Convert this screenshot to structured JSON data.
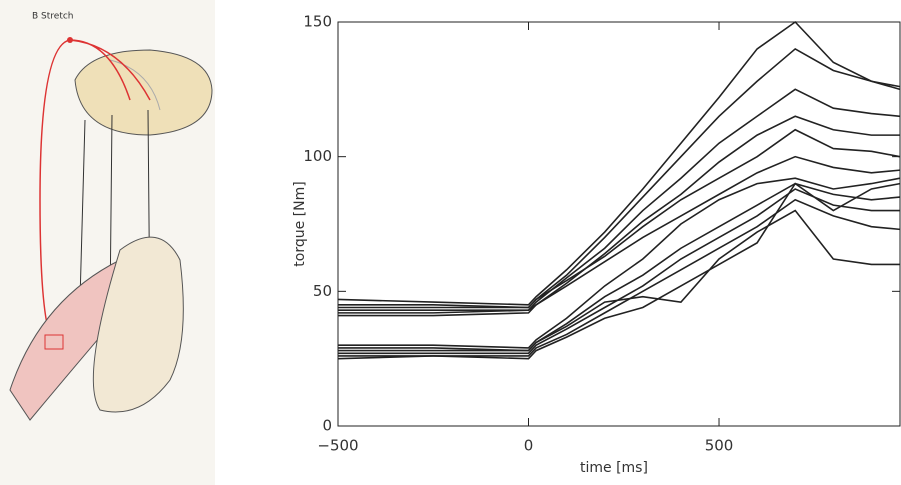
{
  "panel_label": "B Stretch",
  "chart_data": {
    "type": "line",
    "xlabel": "time [ms]",
    "ylabel": "torque [Nm]",
    "x": [
      -500,
      -250,
      0,
      20,
      100,
      200,
      300,
      400,
      500,
      600,
      700,
      800,
      900,
      975
    ],
    "color": "#222222",
    "series": [
      {
        "values": [
          47,
          46,
          45,
          48,
          58,
          72,
          88,
          105,
          122,
          140,
          150,
          135,
          128,
          125
        ]
      },
      {
        "values": [
          45,
          45,
          44,
          47,
          56,
          70,
          85,
          100,
          115,
          128,
          140,
          132,
          128,
          126
        ]
      },
      {
        "values": [
          43,
          43,
          43,
          46,
          55,
          66,
          80,
          92,
          105,
          115,
          125,
          118,
          116,
          115
        ]
      },
      {
        "values": [
          41,
          41,
          42,
          45,
          53,
          64,
          76,
          86,
          98,
          108,
          115,
          110,
          108,
          108
        ]
      },
      {
        "values": [
          44,
          44,
          44,
          47,
          54,
          63,
          74,
          84,
          92,
          100,
          110,
          103,
          102,
          100
        ]
      },
      {
        "values": [
          42,
          42,
          43,
          45,
          52,
          61,
          70,
          78,
          86,
          94,
          100,
          96,
          94,
          95
        ]
      },
      {
        "values": [
          30,
          30,
          29,
          32,
          40,
          52,
          62,
          75,
          84,
          90,
          92,
          88,
          90,
          92
        ]
      },
      {
        "values": [
          28,
          28,
          28,
          31,
          38,
          48,
          56,
          66,
          74,
          82,
          90,
          86,
          84,
          85
        ]
      },
      {
        "values": [
          27,
          27,
          27,
          30,
          36,
          44,
          52,
          62,
          70,
          78,
          88,
          82,
          80,
          80
        ]
      },
      {
        "values": [
          25,
          26,
          26,
          29,
          34,
          42,
          50,
          58,
          66,
          74,
          84,
          78,
          74,
          73
        ]
      },
      {
        "values": [
          29,
          29,
          28,
          31,
          37,
          46,
          48,
          46,
          62,
          72,
          80,
          62,
          60,
          60
        ]
      },
      {
        "values": [
          26,
          26,
          25,
          28,
          33,
          40,
          44,
          52,
          60,
          68,
          90,
          80,
          88,
          90
        ]
      }
    ],
    "xlim": [
      -500,
      975
    ],
    "ylim": [
      0,
      150
    ],
    "xticks": [
      {
        "value": -500,
        "label": "−500"
      },
      0,
      500
    ],
    "yticks": [
      0,
      50,
      100,
      150
    ]
  }
}
